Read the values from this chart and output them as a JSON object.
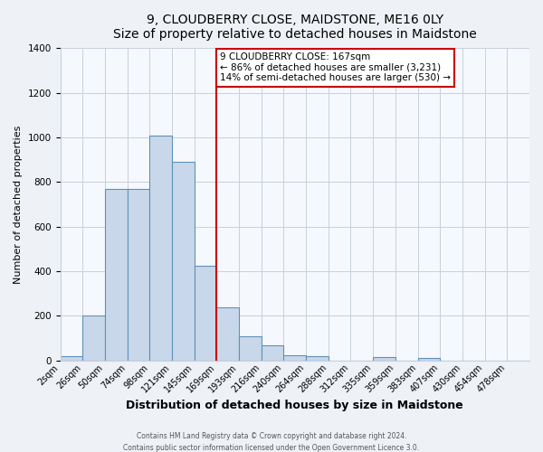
{
  "title": "9, CLOUDBERRY CLOSE, MAIDSTONE, ME16 0LY",
  "subtitle": "Size of property relative to detached houses in Maidstone",
  "xlabel": "Distribution of detached houses by size in Maidstone",
  "ylabel": "Number of detached properties",
  "tick_labels": [
    "2sqm",
    "26sqm",
    "50sqm",
    "74sqm",
    "98sqm",
    "121sqm",
    "145sqm",
    "169sqm",
    "193sqm",
    "216sqm",
    "240sqm",
    "264sqm",
    "288sqm",
    "312sqm",
    "335sqm",
    "359sqm",
    "383sqm",
    "407sqm",
    "430sqm",
    "454sqm",
    "478sqm"
  ],
  "bar_heights": [
    20,
    200,
    770,
    770,
    1010,
    890,
    425,
    240,
    110,
    70,
    25,
    20,
    0,
    0,
    15,
    0,
    10,
    0,
    0,
    0,
    0
  ],
  "bar_color": "#c8d8ea",
  "bar_edge_color": "#6090b8",
  "vline_index": 7,
  "vline_color": "#cc0000",
  "ylim": [
    0,
    1400
  ],
  "yticks": [
    0,
    200,
    400,
    600,
    800,
    1000,
    1200,
    1400
  ],
  "annotation_title": "9 CLOUDBERRY CLOSE: 167sqm",
  "annotation_line1": "← 86% of detached houses are smaller (3,231)",
  "annotation_line2": "14% of semi-detached houses are larger (530) →",
  "annotation_box_color": "#ffffff",
  "annotation_box_edge": "#cc0000",
  "footer1": "Contains HM Land Registry data © Crown copyright and database right 2024.",
  "footer2": "Contains public sector information licensed under the Open Government Licence 3.0.",
  "bg_color": "#eef2f7",
  "plot_bg_color": "#f5f8fc",
  "grid_color": "#c8d0da",
  "title_fontsize": 10,
  "subtitle_fontsize": 9,
  "xlabel_fontsize": 9,
  "ylabel_fontsize": 8,
  "tick_fontsize": 7,
  "annot_fontsize": 7.5
}
